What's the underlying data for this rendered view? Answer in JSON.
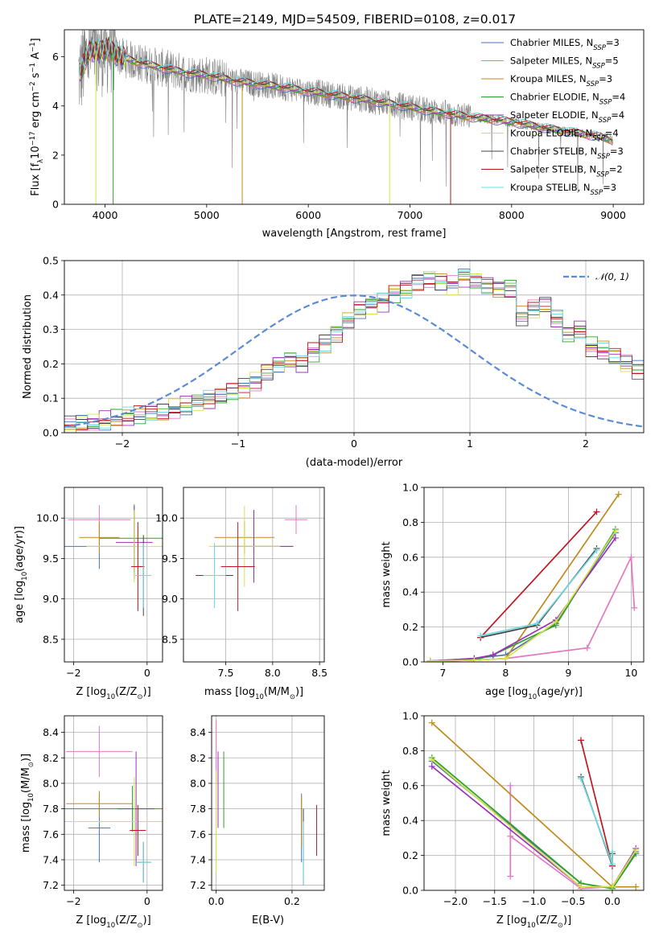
{
  "title": "PLATE=2149, MJD=54509, FIBERID=0108, z=0.017",
  "models": [
    {
      "name": "Chabrier MILES",
      "nssp": "3",
      "color": "#4c72b0"
    },
    {
      "name": "Salpeter MILES",
      "nssp": "5",
      "color": "#e377c2"
    },
    {
      "name": "Kroupa MILES",
      "nssp": "3",
      "color": "#c08a1a"
    },
    {
      "name": "Chabrier ELODIE",
      "nssp": "4",
      "color": "#2ca02c"
    },
    {
      "name": "Salpeter ELODIE",
      "nssp": "4",
      "color": "#9b30b8"
    },
    {
      "name": "Kroupa ELODIE",
      "nssp": "4",
      "color": "#d4e34b"
    },
    {
      "name": "Chabrier STELIB",
      "nssp": "3",
      "color": "#444444"
    },
    {
      "name": "Salpeter STELIB",
      "nssp": "2",
      "color": "#c0141e"
    },
    {
      "name": "Kroupa STELIB",
      "nssp": "3",
      "color": "#6fd8e0"
    }
  ],
  "nssp_prefix": "N",
  "nssp_sub": "SSP",
  "chart_data": [
    {
      "type": "line",
      "id": "spectrum",
      "xlabel": "wavelength [Angstrom, rest frame]",
      "ylabel": "Flux [f",
      "ylabel_sub": "λ",
      "ylabel_tail": "10",
      "ylabel_sup": "−17",
      "ylabel_unit": " erg cm",
      "ylabel_sup2": "−2",
      "ylabel_unit2": " s",
      "ylabel_sup3": "−1",
      "ylabel_unit3": " A",
      "ylabel_sup4": "−1",
      "ylabel_end": "]",
      "xlim": [
        3600,
        9300
      ],
      "ylim": [
        0,
        7.1
      ],
      "xticks": [
        4000,
        5000,
        6000,
        7000,
        8000,
        9000
      ],
      "yticks": [
        0,
        2,
        4,
        6
      ],
      "data_color": "#808080",
      "continuum": {
        "x": [
          3750,
          3850,
          3950,
          4050,
          4150,
          4300,
          4500,
          4800,
          5000,
          5300,
          5600,
          6000,
          6400,
          6800,
          7200,
          7600,
          8000,
          8400,
          8800,
          9000
        ],
        "y": [
          5.3,
          6.3,
          6.2,
          6.35,
          6.0,
          5.8,
          5.6,
          5.35,
          5.25,
          5.0,
          4.85,
          4.6,
          4.35,
          4.1,
          3.8,
          3.55,
          3.35,
          3.05,
          2.8,
          2.6
        ]
      }
    },
    {
      "type": "histogram",
      "id": "residuals",
      "xlabel": "(data-model)/error",
      "ylabel": "Normed distribution",
      "xlim": [
        -2.5,
        2.5
      ],
      "ylim": [
        0,
        0.5
      ],
      "xticks": [
        -2,
        -1,
        0,
        1,
        2
      ],
      "yticks": [
        0,
        0.1,
        0.2,
        0.3,
        0.4,
        0.5
      ],
      "bin_width": 0.1,
      "bins_start": -2.5,
      "base_density": [
        0.02,
        0.025,
        0.03,
        0.035,
        0.04,
        0.045,
        0.05,
        0.055,
        0.06,
        0.07,
        0.08,
        0.09,
        0.095,
        0.105,
        0.12,
        0.13,
        0.15,
        0.18,
        0.2,
        0.21,
        0.2,
        0.235,
        0.26,
        0.29,
        0.33,
        0.36,
        0.37,
        0.38,
        0.405,
        0.42,
        0.44,
        0.45,
        0.44,
        0.43,
        0.45,
        0.44,
        0.43,
        0.42,
        0.42,
        0.34,
        0.36,
        0.37,
        0.33,
        0.29,
        0.3,
        0.25,
        0.24,
        0.22,
        0.2,
        0.18,
        0.2,
        0.18,
        0.21,
        0.165,
        0.14,
        0.14,
        0.11,
        0.095,
        0.085,
        0.08,
        0.065,
        0.055,
        0.05,
        0.04,
        0.03,
        0.025,
        0.025,
        0.02,
        0.02,
        0.02
      ],
      "legend": "𝒩(0, 1)",
      "legend_color": "#5b8bd6"
    },
    {
      "type": "errorbar",
      "id": "age-vs-Z",
      "xlabel": "Z [log",
      "xlabel_sub": "10",
      "xlabel_tail": "(Z/Z",
      "xlabel_sub2": "⊙",
      "xlabel_end": ")]",
      "ylabel": "age  [log",
      "ylabel_sub": "10",
      "ylabel_tail": "(age/yr)]",
      "xlim": [
        -2.25,
        0.42
      ],
      "ylim": [
        8.22,
        10.38
      ],
      "xticks": [
        -2,
        0
      ],
      "yticks": [
        8.5,
        9.0,
        9.5,
        10.0
      ],
      "points": [
        {
          "model": 0,
          "x": -1.3,
          "y": 9.65,
          "xerr": 1.0,
          "yerr": 0.28
        },
        {
          "model": 1,
          "x": -1.3,
          "y": 9.98,
          "xerr": 0.85,
          "yerr": 0.18
        },
        {
          "model": 2,
          "x": -1.3,
          "y": 9.76,
          "xerr": 0.55,
          "yerr": 0.2
        },
        {
          "model": 3,
          "x": -0.35,
          "y": 9.75,
          "xerr": 0.95,
          "yerr": 0.42
        },
        {
          "model": 4,
          "x": -0.35,
          "y": 9.7,
          "xerr": 0.5,
          "yerr": 0.45
        },
        {
          "model": 5,
          "x": -0.35,
          "y": 9.65,
          "xerr": 1.3,
          "yerr": 0.45
        },
        {
          "model": 6,
          "x": -0.1,
          "y": 9.29,
          "xerr": 0.2,
          "yerr": 0.5
        },
        {
          "model": 7,
          "x": -0.25,
          "y": 9.4,
          "xerr": 0.18,
          "yerr": 0.55
        },
        {
          "model": 8,
          "x": -0.1,
          "y": 9.29,
          "xerr": 0.22,
          "yerr": 0.4
        }
      ]
    },
    {
      "type": "errorbar",
      "id": "age-vs-mass",
      "xlabel": "mass [log",
      "xlabel_sub": "10",
      "xlabel_tail": "(M/M",
      "xlabel_sub2": "⊙",
      "xlabel_end": ")]",
      "xlim": [
        7.05,
        8.55
      ],
      "ylim": [
        8.22,
        10.38
      ],
      "xticks": [
        7.5,
        8.0,
        8.5
      ],
      "yticks": [
        8.5,
        9.0,
        9.5,
        10.0
      ],
      "points": [
        {
          "model": 0,
          "x": 7.38,
          "y": 9.29,
          "xerr": 0.15,
          "yerr": 0.4
        },
        {
          "model": 1,
          "x": 8.25,
          "y": 9.98,
          "xerr": 0.12,
          "yerr": 0.18
        },
        {
          "model": 2,
          "x": 7.7,
          "y": 9.76,
          "xerr": 0.32,
          "yerr": 0.2
        },
        {
          "model": 3,
          "x": 7.8,
          "y": 9.65,
          "xerr": 0.42,
          "yerr": 0.45
        },
        {
          "model": 4,
          "x": 7.8,
          "y": 9.65,
          "xerr": 0.42,
          "yerr": 0.45
        },
        {
          "model": 5,
          "x": 7.7,
          "y": 9.65,
          "xerr": 0.38,
          "yerr": 0.5
        },
        {
          "model": 6,
          "x": 7.38,
          "y": 9.29,
          "xerr": 0.2,
          "yerr": 0.4
        },
        {
          "model": 7,
          "x": 7.63,
          "y": 9.4,
          "xerr": 0.18,
          "yerr": 0.55
        },
        {
          "model": 8,
          "x": 7.38,
          "y": 9.29,
          "xerr": 0.12,
          "yerr": 0.4
        }
      ]
    },
    {
      "type": "line",
      "id": "weight-vs-age",
      "xlabel": "age  [log",
      "xlabel_sub": "10",
      "xlabel_tail": "(age/yr)]",
      "ylabel": "mass weight",
      "xlim": [
        6.7,
        10.2
      ],
      "ylim": [
        0,
        1.0
      ],
      "xticks": [
        7,
        8,
        9,
        10
      ],
      "yticks": [
        0.0,
        0.2,
        0.4,
        0.6,
        0.8,
        1.0
      ],
      "series": [
        {
          "model": 0,
          "x": [
            6.8,
            7.5,
            8.0,
            8.8,
            9.75
          ],
          "y": [
            0.005,
            0.02,
            0.04,
            0.22,
            0.74
          ]
        },
        {
          "model": 1,
          "x": [
            6.8,
            7.5,
            8.0,
            9.3,
            10.0,
            10.05
          ],
          "y": [
            0.003,
            0.01,
            0.02,
            0.08,
            0.6,
            0.31
          ]
        },
        {
          "model": 2,
          "x": [
            6.8,
            7.5,
            8.0,
            9.8
          ],
          "y": [
            0.003,
            0.01,
            0.02,
            0.96
          ]
        },
        {
          "model": 3,
          "x": [
            6.8,
            7.5,
            7.8,
            8.8,
            9.75
          ],
          "y": [
            0.005,
            0.01,
            0.04,
            0.21,
            0.76
          ]
        },
        {
          "model": 4,
          "x": [
            6.8,
            7.5,
            7.8,
            8.8,
            9.75
          ],
          "y": [
            0.005,
            0.02,
            0.04,
            0.24,
            0.71
          ]
        },
        {
          "model": 5,
          "x": [
            6.8,
            7.5,
            8.0,
            8.8,
            9.75
          ],
          "y": [
            0.005,
            0.01,
            0.02,
            0.23,
            0.75
          ]
        },
        {
          "model": 6,
          "x": [
            7.6,
            8.5,
            9.45
          ],
          "y": [
            0.14,
            0.21,
            0.65
          ]
        },
        {
          "model": 7,
          "x": [
            7.6,
            9.45
          ],
          "y": [
            0.14,
            0.86
          ]
        },
        {
          "model": 8,
          "x": [
            7.6,
            8.5,
            9.45
          ],
          "y": [
            0.15,
            0.22,
            0.64
          ]
        }
      ]
    },
    {
      "type": "errorbar",
      "id": "mass-vs-Z",
      "xlabel": "Z [log",
      "xlabel_sub": "10",
      "xlabel_tail": "(Z/Z",
      "xlabel_sub2": "⊙",
      "xlabel_end": ")]",
      "ylabel": "mass [log",
      "ylabel_sub": "10",
      "ylabel_tail": "(M/M",
      "ylabel_sub2": "⊙",
      "ylabel_end": ")]",
      "xlim": [
        -2.25,
        0.42
      ],
      "ylim": [
        7.16,
        8.53
      ],
      "xticks": [
        -2,
        0
      ],
      "yticks": [
        7.2,
        7.4,
        7.6,
        7.8,
        8.0,
        8.2,
        8.4
      ],
      "points": [
        {
          "model": 0,
          "x": -1.3,
          "y": 7.65,
          "xerr": 0.3,
          "yerr": 0.27
        },
        {
          "model": 1,
          "x": -1.3,
          "y": 8.25,
          "xerr": 0.9,
          "yerr": 0.2
        },
        {
          "model": 2,
          "x": -1.3,
          "y": 7.84,
          "xerr": 0.9,
          "yerr": 0.1
        },
        {
          "model": 3,
          "x": -0.4,
          "y": 7.8,
          "xerr": 1.9,
          "yerr": 0.18
        },
        {
          "model": 4,
          "x": -0.3,
          "y": 7.8,
          "xerr": 0.5,
          "yerr": 0.45
        },
        {
          "model": 5,
          "x": -0.35,
          "y": 7.7,
          "xerr": 1.9,
          "yerr": 0.35
        },
        {
          "model": 6,
          "x": -0.1,
          "y": 7.38,
          "xerr": 0.2,
          "yerr": 0.16
        },
        {
          "model": 7,
          "x": -0.25,
          "y": 7.63,
          "xerr": 0.22,
          "yerr": 0.2
        },
        {
          "model": 8,
          "x": -0.1,
          "y": 7.38,
          "xerr": 0.22,
          "yerr": 0.16
        }
      ]
    },
    {
      "type": "errorbar",
      "id": "mass-vs-ebv",
      "xlabel": "E(B-V)",
      "xlim": [
        -0.012,
        0.285
      ],
      "ylim": [
        7.16,
        8.53
      ],
      "xticks": [
        0.0,
        0.2
      ],
      "yticks": [
        7.2,
        7.4,
        7.6,
        7.8,
        8.0,
        8.2,
        8.4
      ],
      "points": [
        {
          "model": 0,
          "x": 0.225,
          "y": 7.65,
          "xerr": 0,
          "yerr": 0.27
        },
        {
          "model": 1,
          "x": 0.0,
          "y": 8.25,
          "xerr": 0,
          "yerr": 0.25
        },
        {
          "model": 2,
          "x": 0.225,
          "y": 7.7,
          "xerr": 0,
          "yerr": 0.2
        },
        {
          "model": 3,
          "x": 0.02,
          "y": 7.95,
          "xerr": 0,
          "yerr": 0.3
        },
        {
          "model": 4,
          "x": 0.005,
          "y": 7.95,
          "xerr": 0,
          "yerr": 0.3
        },
        {
          "model": 5,
          "x": 0.0,
          "y": 7.7,
          "xerr": 0,
          "yerr": 0.4
        },
        {
          "model": 6,
          "x": 0.23,
          "y": 7.5,
          "xerr": 0,
          "yerr": 0.3
        },
        {
          "model": 7,
          "x": 0.265,
          "y": 7.63,
          "xerr": 0,
          "yerr": 0.2
        },
        {
          "model": 8,
          "x": 0.23,
          "y": 7.45,
          "xerr": 0,
          "yerr": 0.25
        }
      ]
    },
    {
      "type": "line",
      "id": "weight-vs-Z",
      "xlabel": "Z [log",
      "xlabel_sub": "10",
      "xlabel_tail": "(Z/Z",
      "xlabel_sub2": "⊙",
      "xlabel_end": ")]",
      "ylabel": "mass weight",
      "xlim": [
        -2.4,
        0.4
      ],
      "ylim": [
        0,
        1.0
      ],
      "xticks": [
        -2.0,
        -1.5,
        -1.0,
        -0.5,
        0.0
      ],
      "xtick_labels": [
        "−2.0",
        "−1.5",
        "−1.0",
        "−0.5",
        "0.0"
      ],
      "yticks": [
        0.0,
        0.2,
        0.4,
        0.6,
        0.8,
        1.0
      ],
      "series": [
        {
          "model": 0,
          "x": [
            -2.3,
            -0.4,
            0.0,
            0.3
          ],
          "y": [
            0.74,
            0.04,
            0.01,
            0.22
          ]
        },
        {
          "model": 1,
          "x": [
            -1.3,
            -1.3,
            -1.3,
            -0.4,
            0.0
          ],
          "y": [
            0.6,
            0.08,
            0.31,
            0.01,
            0.02
          ]
        },
        {
          "model": 2,
          "x": [
            -2.3,
            0.0,
            0.3
          ],
          "y": [
            0.96,
            0.02,
            0.02
          ]
        },
        {
          "model": 3,
          "x": [
            -2.3,
            -0.4,
            0.0,
            0.3
          ],
          "y": [
            0.76,
            0.04,
            0.01,
            0.21
          ]
        },
        {
          "model": 4,
          "x": [
            -2.3,
            -0.4,
            0.0,
            0.3
          ],
          "y": [
            0.71,
            0.02,
            0.02,
            0.24
          ]
        },
        {
          "model": 5,
          "x": [
            -2.3,
            -0.4,
            0.0,
            0.3
          ],
          "y": [
            0.75,
            0.02,
            0.02,
            0.23
          ]
        },
        {
          "model": 6,
          "x": [
            -0.4,
            0.0,
            0.0
          ],
          "y": [
            0.65,
            0.14,
            0.21
          ]
        },
        {
          "model": 7,
          "x": [
            -0.4,
            0.0
          ],
          "y": [
            0.86,
            0.14
          ]
        },
        {
          "model": 8,
          "x": [
            -0.4,
            0.0,
            0.0
          ],
          "y": [
            0.64,
            0.15,
            0.22
          ]
        }
      ]
    }
  ]
}
